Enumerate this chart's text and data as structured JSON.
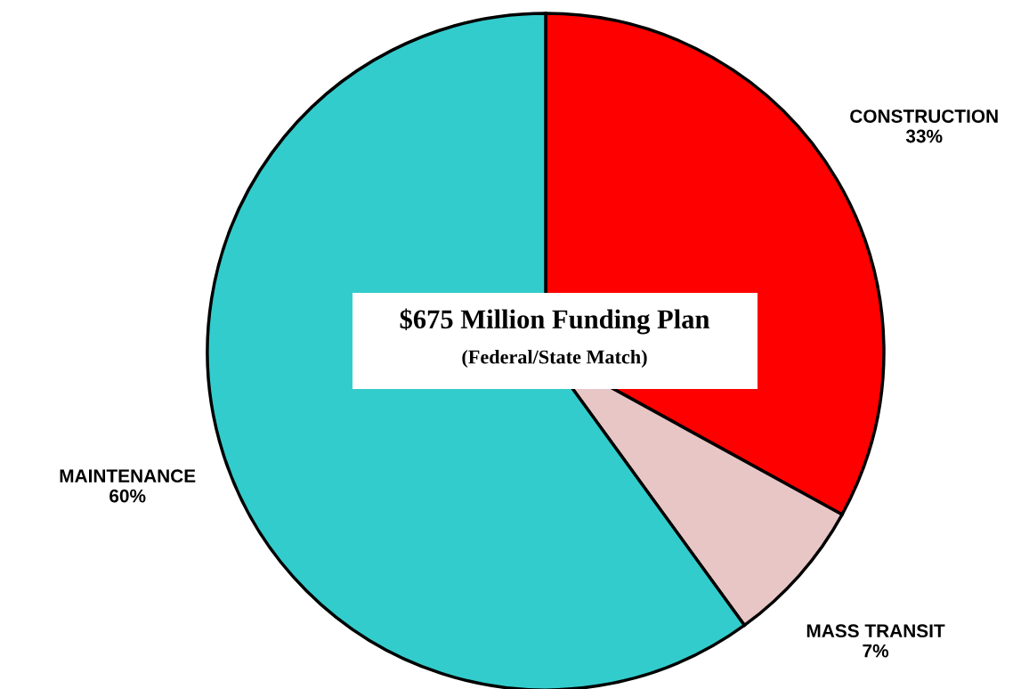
{
  "chart_data": {
    "type": "pie",
    "title": "$675 Million Funding Plan",
    "subtitle": "(Federal/State Match)",
    "categories": [
      "CONSTRUCTION",
      "MASS TRANSIT",
      "MAINTENANCE"
    ],
    "values": [
      33,
      7,
      60
    ],
    "value_labels": [
      "33%",
      "7%",
      "60%"
    ],
    "colors": [
      "#ff0000",
      "#e8c6c6",
      "#33cccc"
    ]
  }
}
